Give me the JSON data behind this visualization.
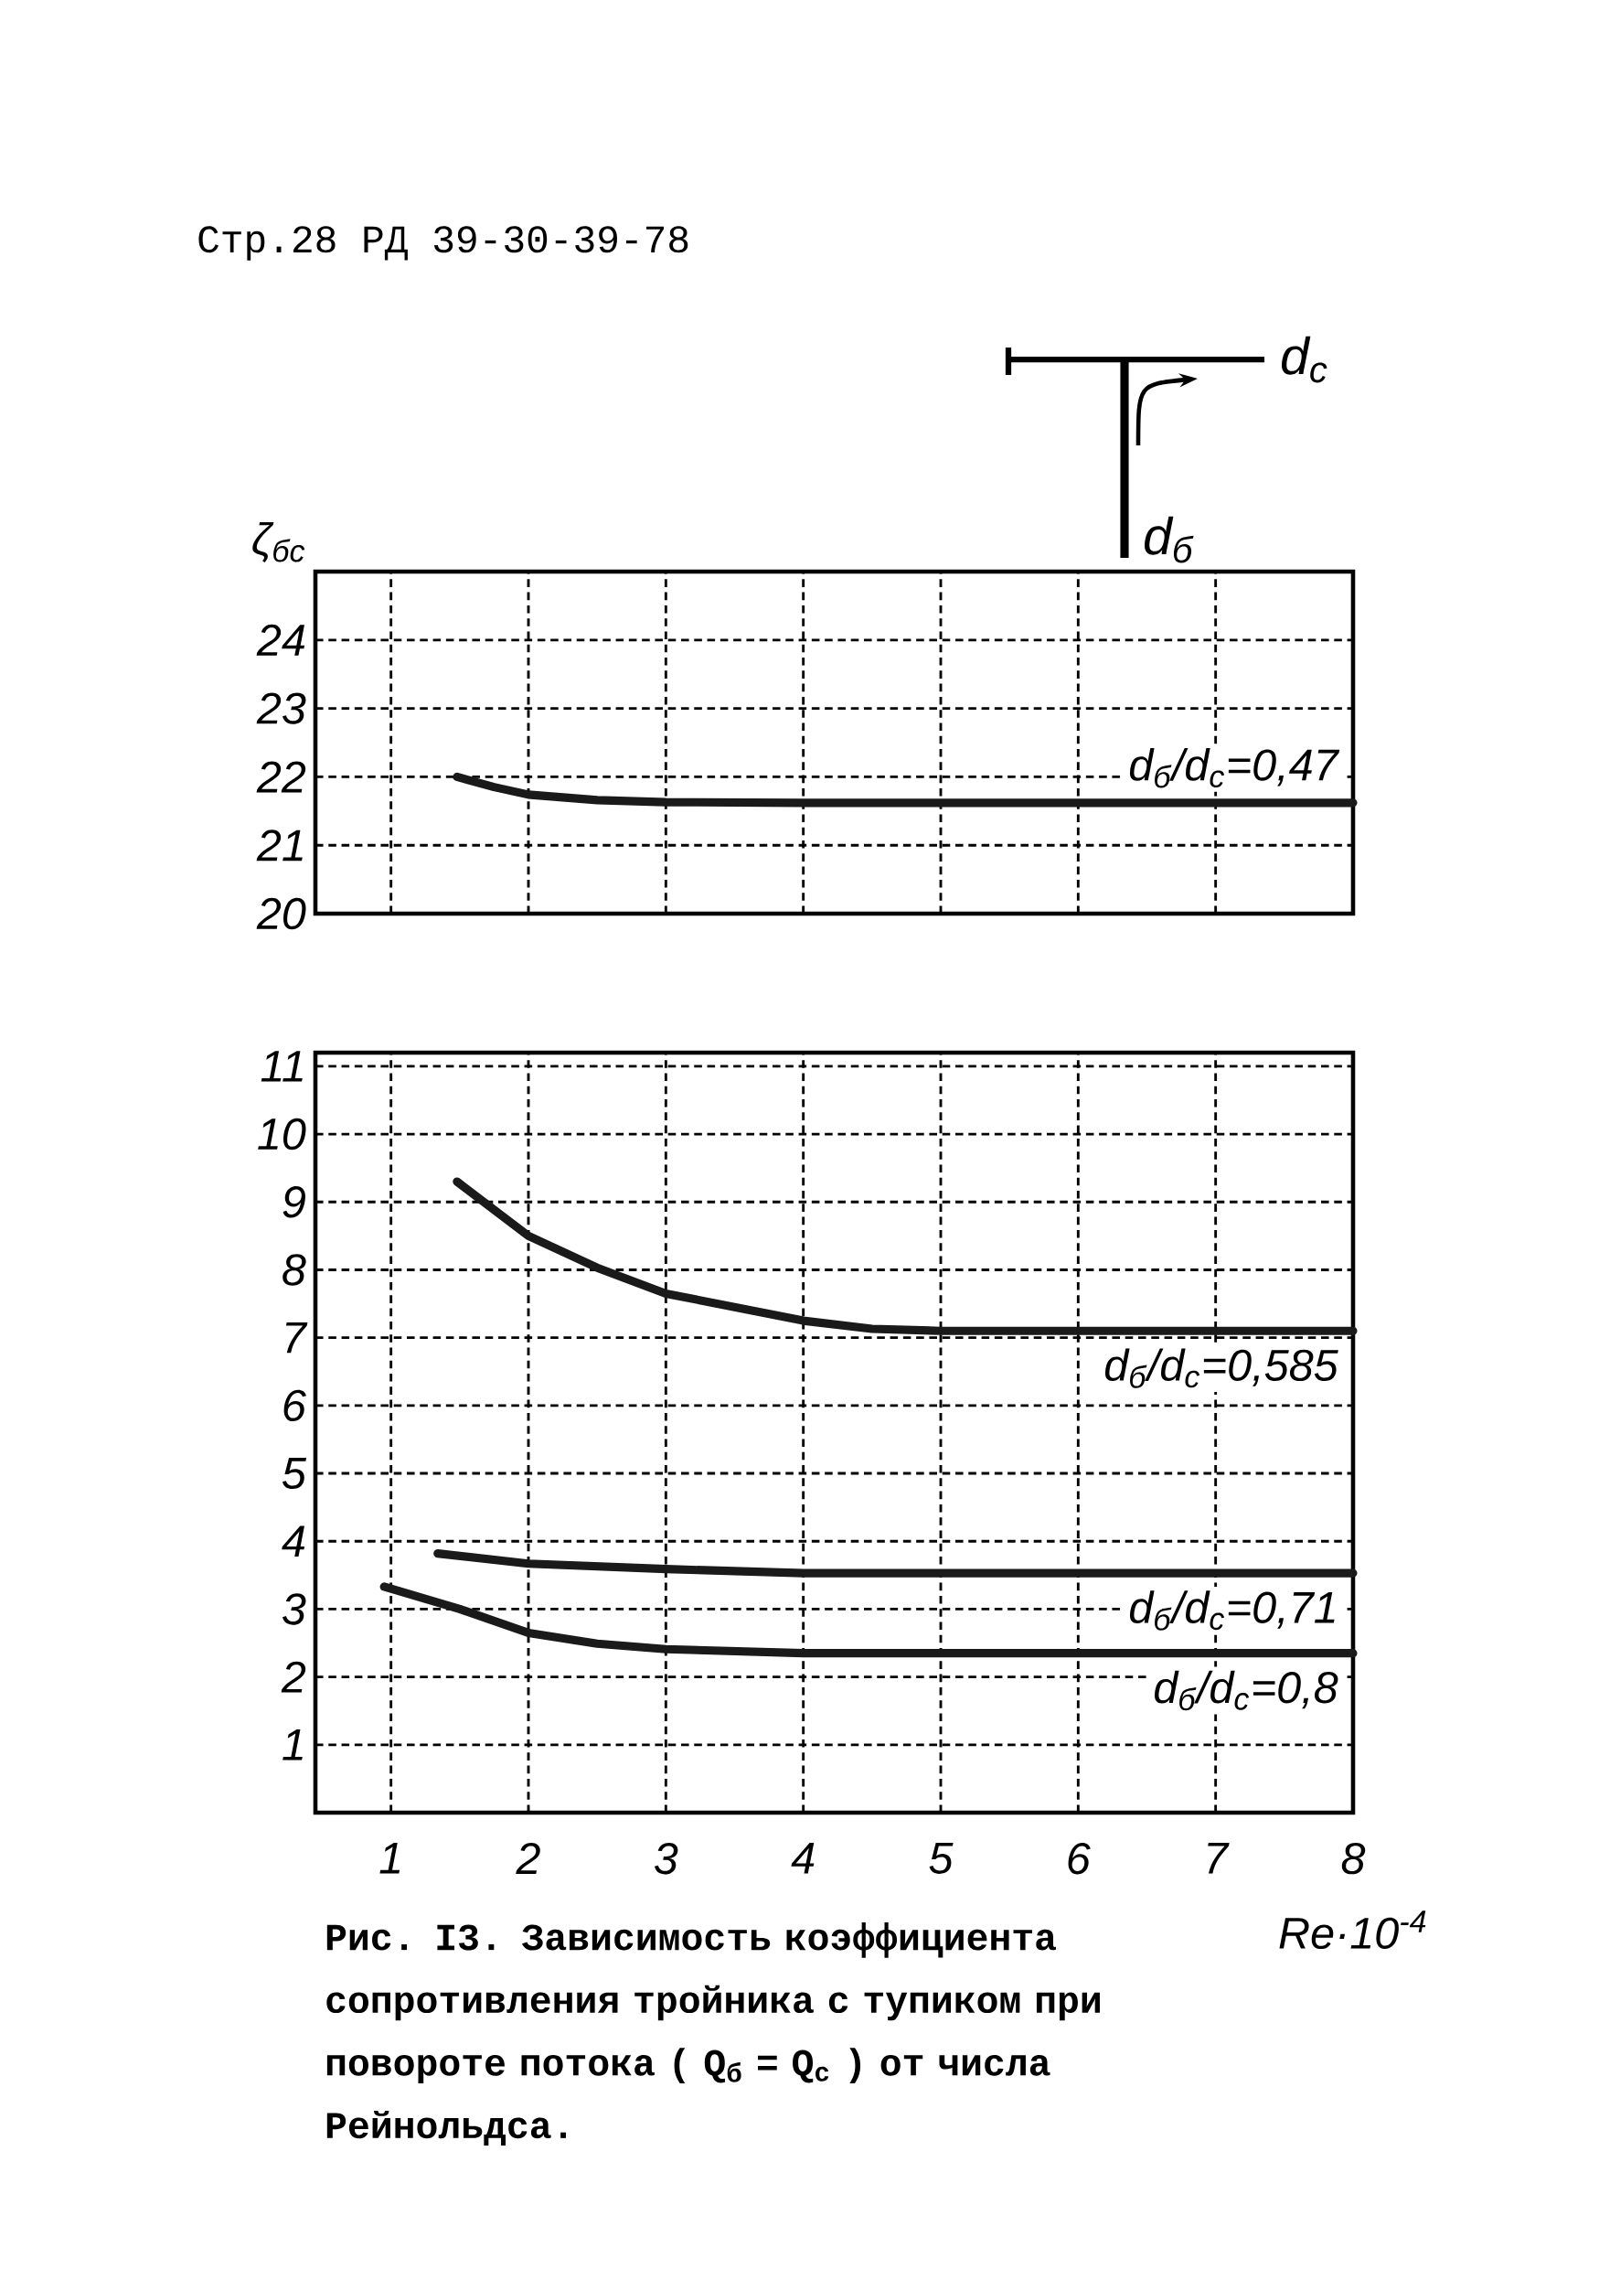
{
  "chart_data": [
    {
      "type": "line",
      "ylabel": "ζ$_{бс}$",
      "annotations": [
        "Стр.28 РД 39-30-39-78",
        "d$_{c}$",
        "d$_{б}$"
      ],
      "xlim": [
        0.45,
        8
      ],
      "xticks": [
        1,
        2,
        3,
        4,
        5,
        6,
        7,
        8
      ],
      "ylim": [
        20,
        25
      ],
      "yticks": [
        20,
        21,
        22,
        23,
        24
      ],
      "tick_labels": "y",
      "grid": true,
      "marker": "none",
      "line_style": "solid",
      "series": [
        {
          "name": "d$_{б}$/d$_{c}$=0,47",
          "color": "#1a1a1a",
          "x": [
            1.48,
            1.75,
            2,
            2.5,
            3,
            4,
            5,
            6,
            7,
            8
          ],
          "values": [
            22.0,
            21.85,
            21.74,
            21.66,
            21.63,
            21.62,
            21.62,
            21.62,
            21.62,
            21.62
          ]
        }
      ]
    },
    {
      "type": "line",
      "xlabel": "Re·10$^{-4}$",
      "annotations": [
        "Рис. I3. Зависимость коэффициента сопротивления тройника с тупиком при повороте потока ( Q$_{б}$ = Q$_{c}$ ) от числа Рейнольдса."
      ],
      "xlim": [
        0.45,
        8
      ],
      "xticks": [
        1,
        2,
        3,
        4,
        5,
        6,
        7,
        8
      ],
      "ylim": [
        0,
        11.2
      ],
      "yticks": [
        1,
        2,
        3,
        4,
        5,
        6,
        7,
        8,
        9,
        10,
        11
      ],
      "grid": true,
      "marker": "none",
      "line_style": "solid",
      "series": [
        {
          "name": "d$_{б}$/d$_{c}$=0,585",
          "color": "#1a1a1a",
          "x": [
            1.48,
            2,
            2.5,
            3,
            3.5,
            4,
            4.5,
            5,
            6,
            7,
            8
          ],
          "values": [
            9.3,
            8.5,
            8.03,
            7.65,
            7.45,
            7.25,
            7.13,
            7.1,
            7.1,
            7.1,
            7.1
          ]
        },
        {
          "name": "d$_{б}$/d$_{c}$=0,71",
          "color": "#1a1a1a",
          "x": [
            1.34,
            2,
            3,
            4,
            5,
            6,
            7,
            8
          ],
          "values": [
            3.82,
            3.67,
            3.59,
            3.53,
            3.53,
            3.53,
            3.53,
            3.53
          ]
        },
        {
          "name": "d$_{б}$/d$_{c}$=0,8",
          "color": "#1a1a1a",
          "x": [
            0.95,
            1.5,
            2,
            2.5,
            3,
            4,
            5,
            6,
            7,
            8
          ],
          "values": [
            3.33,
            3.0,
            2.65,
            2.49,
            2.41,
            2.35,
            2.35,
            2.35,
            2.35,
            2.35
          ]
        }
      ]
    }
  ]
}
